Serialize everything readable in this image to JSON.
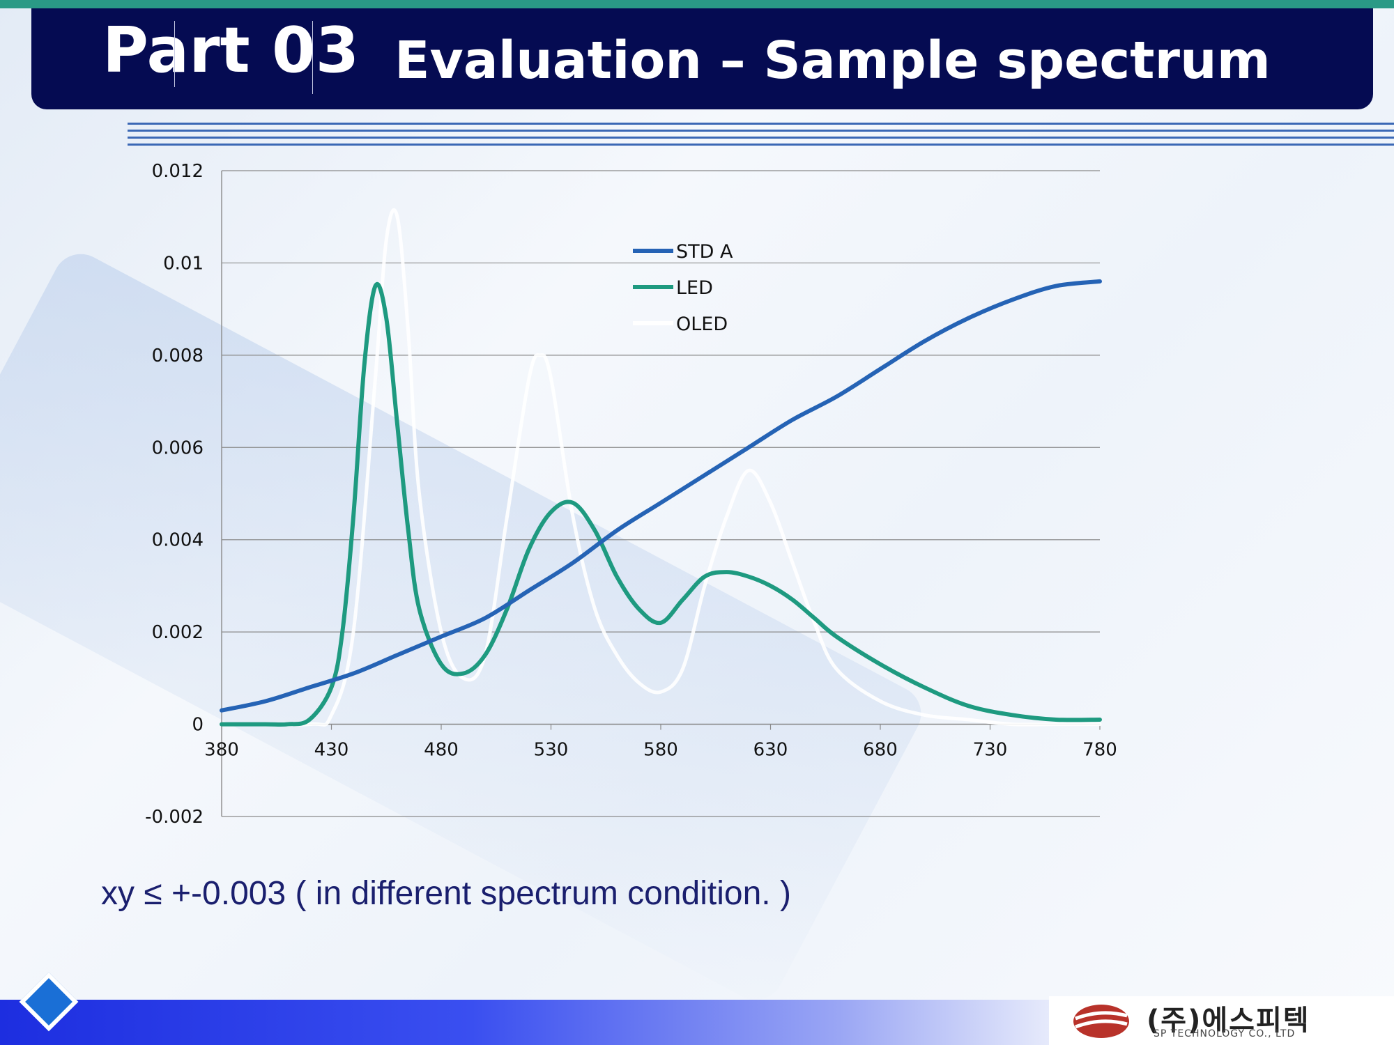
{
  "title": {
    "part": "Part 03",
    "text": "Evaluation – Sample spectrum"
  },
  "caption": "xy ≤ +-0.003 ( in different spectrum condition. )",
  "logo": {
    "text": "(주)에스피텍",
    "sub": "SP TECHNOLOGY CO., LTD"
  },
  "colors": {
    "std_a": "#2563b5",
    "led": "#1e9a80",
    "oled": "#ffffff",
    "title_bar": "#050b52",
    "grid": "#8a8a8a"
  },
  "chart_data": {
    "type": "line",
    "title": "",
    "xlabel": "",
    "ylabel": "",
    "xlim": [
      380,
      780
    ],
    "ylim": [
      -0.002,
      0.012
    ],
    "xticks": [
      "380",
      "430",
      "480",
      "530",
      "580",
      "630",
      "680",
      "730",
      "780"
    ],
    "yticks": [
      "-0.002",
      "0",
      "0.002",
      "0.004",
      "0.006",
      "0.008",
      "0.01",
      "0.012"
    ],
    "grid": true,
    "legend": "top-center",
    "series": [
      {
        "name": "STD A",
        "x": [
          380,
          400,
          420,
          440,
          460,
          480,
          500,
          520,
          540,
          560,
          580,
          600,
          620,
          640,
          660,
          680,
          700,
          720,
          740,
          760,
          780
        ],
        "y": [
          0.0003,
          0.0005,
          0.0008,
          0.0011,
          0.0015,
          0.0019,
          0.0023,
          0.0029,
          0.0035,
          0.0042,
          0.0048,
          0.0054,
          0.006,
          0.0066,
          0.0071,
          0.0077,
          0.0083,
          0.0088,
          0.0092,
          0.0095,
          0.0096
        ]
      },
      {
        "name": "LED",
        "x": [
          380,
          400,
          410,
          420,
          430,
          435,
          440,
          445,
          450,
          455,
          460,
          465,
          470,
          480,
          490,
          500,
          510,
          520,
          530,
          540,
          550,
          560,
          570,
          580,
          590,
          600,
          610,
          620,
          630,
          640,
          650,
          660,
          680,
          700,
          720,
          740,
          760,
          780
        ],
        "y": [
          0,
          0,
          0,
          0.0001,
          0.0008,
          0.002,
          0.0045,
          0.0078,
          0.0095,
          0.0088,
          0.0065,
          0.0042,
          0.0025,
          0.0013,
          0.0011,
          0.0015,
          0.0025,
          0.0038,
          0.0046,
          0.0048,
          0.0042,
          0.0032,
          0.0025,
          0.0022,
          0.0027,
          0.0032,
          0.0033,
          0.0032,
          0.003,
          0.0027,
          0.0023,
          0.0019,
          0.0013,
          0.0008,
          0.0004,
          0.0002,
          0.0001,
          0.0001
        ]
      },
      {
        "name": "OLED",
        "x": [
          380,
          420,
          430,
          440,
          450,
          455,
          460,
          465,
          470,
          480,
          490,
          500,
          510,
          520,
          525,
          530,
          540,
          550,
          560,
          570,
          580,
          590,
          600,
          610,
          620,
          630,
          640,
          650,
          660,
          680,
          700,
          720,
          740,
          760,
          780
        ],
        "y": [
          0,
          0,
          0.0002,
          0.002,
          0.0075,
          0.0105,
          0.011,
          0.0085,
          0.005,
          0.002,
          0.001,
          0.0015,
          0.0045,
          0.0075,
          0.008,
          0.0075,
          0.0045,
          0.0025,
          0.0015,
          0.0009,
          0.0007,
          0.0012,
          0.003,
          0.0045,
          0.0055,
          0.0048,
          0.0035,
          0.0022,
          0.0012,
          0.0005,
          0.0002,
          0.0001,
          0,
          0,
          0
        ]
      }
    ]
  }
}
